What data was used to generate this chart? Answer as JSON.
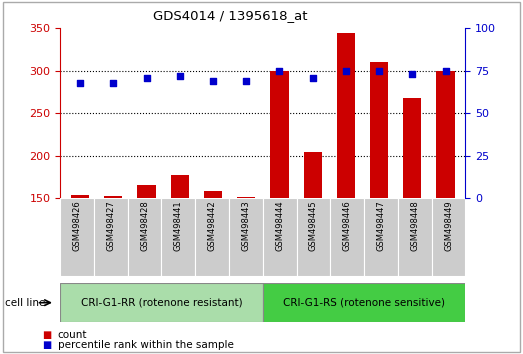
{
  "title": "GDS4014 / 1395618_at",
  "samples": [
    "GSM498426",
    "GSM498427",
    "GSM498428",
    "GSM498441",
    "GSM498442",
    "GSM498443",
    "GSM498444",
    "GSM498445",
    "GSM498446",
    "GSM498447",
    "GSM498448",
    "GSM498449"
  ],
  "counts": [
    154,
    153,
    165,
    177,
    158,
    151,
    300,
    205,
    345,
    310,
    268,
    300
  ],
  "percentiles": [
    68,
    68,
    71,
    72,
    69,
    69,
    75,
    71,
    75,
    75,
    73,
    75
  ],
  "group1_label": "CRI-G1-RR (rotenone resistant)",
  "group2_label": "CRI-G1-RS (rotenone sensitive)",
  "group1_count": 6,
  "group2_count": 6,
  "cell_line_label": "cell line",
  "legend_count": "count",
  "legend_pct": "percentile rank within the sample",
  "bar_color": "#cc0000",
  "dot_color": "#0000cc",
  "group1_bg": "#aaddaa",
  "group2_bg": "#44cc44",
  "tick_bg": "#cccccc",
  "ylim_left": [
    150,
    350
  ],
  "ylim_right": [
    0,
    100
  ],
  "yticks_left": [
    150,
    200,
    250,
    300,
    350
  ],
  "yticks_right": [
    0,
    25,
    50,
    75,
    100
  ],
  "grid_values": [
    200,
    250,
    300
  ],
  "fig_width": 5.23,
  "fig_height": 3.54,
  "dpi": 100
}
